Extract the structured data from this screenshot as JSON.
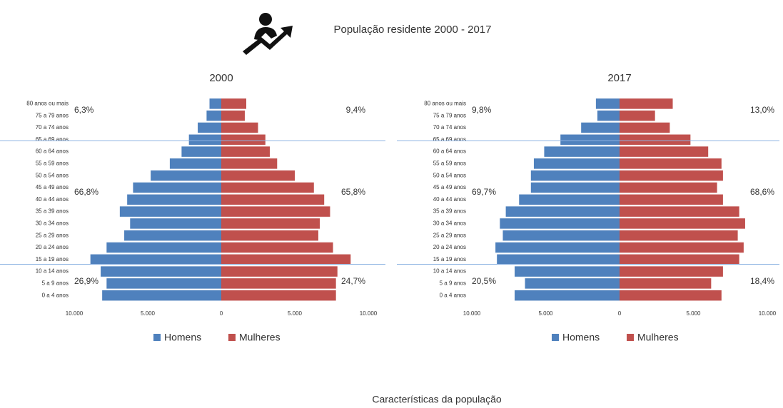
{
  "header": {
    "title": "População residente 2000 - 2017"
  },
  "footer": {
    "text": "Características da população"
  },
  "chart_data": [
    {
      "type": "bar",
      "title": "2000",
      "categories": [
        "80 anos ou mais",
        "75 a 79 anos",
        "70 a 74 anos",
        "65 a 69 anos",
        "60 a 64 anos",
        "55 a 59 anos",
        "50 a 54 anos",
        "45 a 49 anos",
        "40 a 44 anos",
        "35 a 39 anos",
        "30 a 34 anos",
        "25 a 29 anos",
        "20 a 24 anos",
        "15 a 19 anos",
        "10 a 14 anos",
        "5 a 9 anos",
        "0 a 4 anos"
      ],
      "series": [
        {
          "name": "Homens",
          "color": "#4f81bd",
          "values": [
            -800,
            -1000,
            -1600,
            -2200,
            -2700,
            -3500,
            -4800,
            -6000,
            -6400,
            -6900,
            -6200,
            -6600,
            -7800,
            -8900,
            -8200,
            -7800,
            -8100
          ]
        },
        {
          "name": "Mulheres",
          "color": "#c0504d",
          "values": [
            1700,
            1600,
            2500,
            3000,
            3300,
            3800,
            5000,
            6300,
            7000,
            7400,
            6700,
            6600,
            7600,
            8800,
            7900,
            7800,
            7800
          ]
        }
      ],
      "xlim": [
        -10000,
        10000
      ],
      "xticks": [
        {
          "value": -10000,
          "label": "10.000"
        },
        {
          "value": -5000,
          "label": "5.000"
        },
        0,
        {
          "value": 5000,
          "label": "5.000"
        },
        {
          "value": 10000,
          "label": "10.000"
        }
      ],
      "annotations": [
        "6,3%",
        "9,4%",
        "66,8%",
        "65,8%",
        "26,9%",
        "24,7%"
      ],
      "legend": "bottom"
    },
    {
      "type": "bar",
      "title": "2017",
      "categories": [
        "80 anos ou mais",
        "75 a 79 anos",
        "70 a 74 anos",
        "65 a 69 anos",
        "60 a 64 anos",
        "55 a 59 anos",
        "50 a 54 anos",
        "45 a 49 anos",
        "40 a 44 anos",
        "35 a 39 anos",
        "30 a 34 anos",
        "25 a 29 anos",
        "20 a 24 anos",
        "15 a 19 anos",
        "10 a 14 anos",
        "5 a 9 anos",
        "0 a 4 anos"
      ],
      "series": [
        {
          "name": "Homens",
          "color": "#4f81bd",
          "values": [
            -1600,
            -1500,
            -2600,
            -4000,
            -5100,
            -5800,
            -6000,
            -6000,
            -6800,
            -7700,
            -8100,
            -7900,
            -8400,
            -8300,
            -7100,
            -6400,
            -7100
          ]
        },
        {
          "name": "Mulheres",
          "color": "#c0504d",
          "values": [
            3600,
            2400,
            3400,
            4800,
            6000,
            6900,
            7000,
            6600,
            7000,
            8100,
            8500,
            8000,
            8400,
            8100,
            7000,
            6200,
            6900
          ]
        }
      ],
      "xlim": [
        -10000,
        10000
      ],
      "xticks": [
        {
          "value": -10000,
          "label": "10.000"
        },
        {
          "value": -5000,
          "label": "5.000"
        },
        0,
        {
          "value": 5000,
          "label": "5.000"
        },
        {
          "value": 10000,
          "label": "10.000"
        }
      ],
      "annotations": [
        "9,8%",
        "13,0%",
        "69,7%",
        "68,6%",
        "20,5%",
        "18,4%"
      ],
      "legend": "bottom"
    }
  ]
}
